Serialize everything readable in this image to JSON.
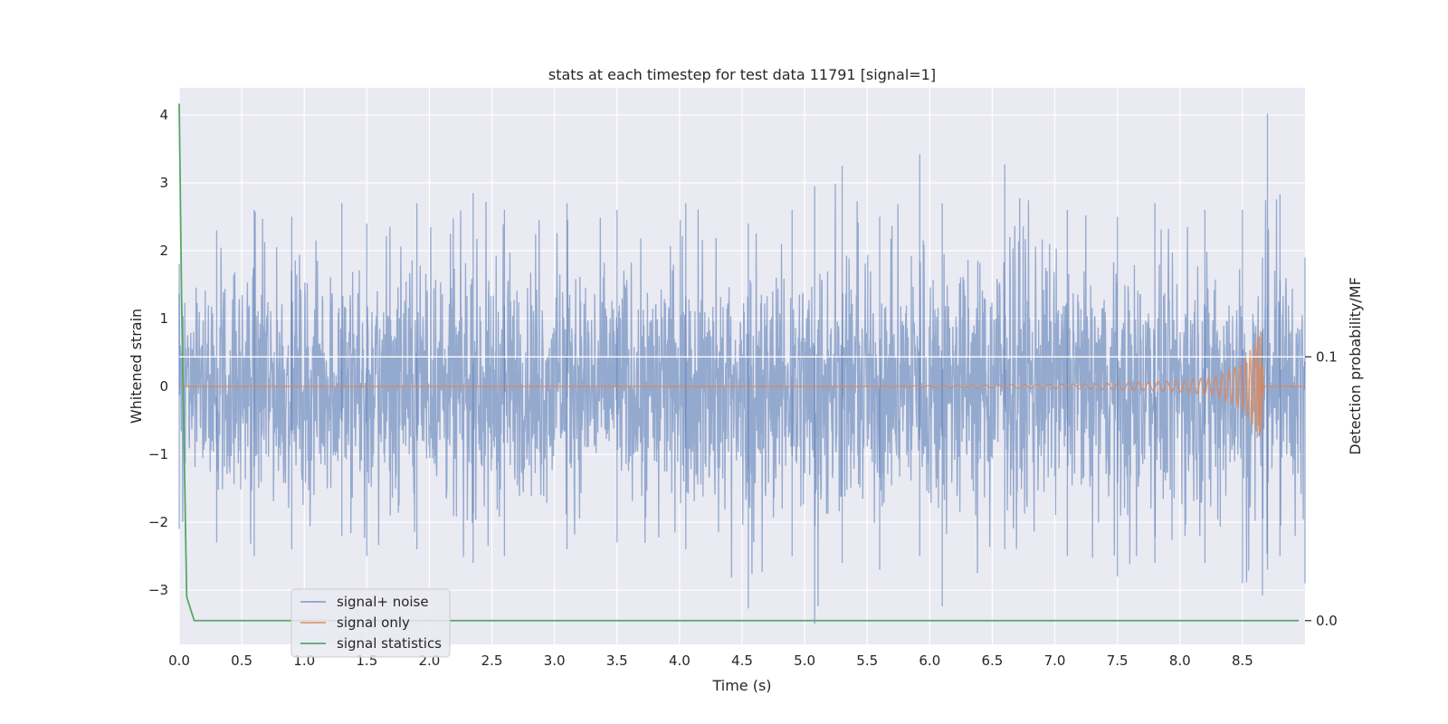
{
  "chart_data": {
    "type": "line",
    "title": "stats at each timestep for test data 11791 [signal=1]",
    "xlabel": "Time (s)",
    "ylabel": "Whitened strain",
    "ylabel_right": "Detection probability/MF",
    "xlim": [
      0,
      9.0
    ],
    "ylim": [
      -3.8,
      4.4
    ],
    "ylim_right": [
      -0.009,
      0.202
    ],
    "x_ticks": [
      0.0,
      0.5,
      1.0,
      1.5,
      2.0,
      2.5,
      3.0,
      3.5,
      4.0,
      4.5,
      5.0,
      5.5,
      6.0,
      6.5,
      7.0,
      7.5,
      8.0,
      8.5
    ],
    "x_tick_labels": [
      "0.0",
      "0.5",
      "1.0",
      "1.5",
      "2.0",
      "2.5",
      "3.0",
      "3.5",
      "4.0",
      "4.5",
      "5.0",
      "5.5",
      "6.0",
      "6.5",
      "7.0",
      "7.5",
      "8.0",
      "8.5"
    ],
    "y_ticks": [
      -3,
      -2,
      -1,
      0,
      1,
      2,
      3,
      4
    ],
    "y_tick_labels": [
      "−3",
      "−2",
      "−1",
      "0",
      "1",
      "2",
      "3",
      "4"
    ],
    "y_right_ticks": [
      0.0,
      0.1
    ],
    "y_right_tick_labels": [
      "0.0",
      "0.1"
    ],
    "grid": true,
    "legend_position": "lower-left",
    "legend": [
      "signal+ noise",
      "signal only",
      "signal statistics"
    ],
    "series": [
      {
        "name": "signal+ noise",
        "axis": "left",
        "color": "#4c72b0",
        "description": "whitened strain noise, roughly within ±2.5 with spikes",
        "x": [
          0.0,
          0.3,
          0.6,
          0.9,
          1.3,
          1.5,
          1.9,
          2.35,
          2.6,
          3.1,
          3.5,
          4.05,
          4.55,
          4.9,
          5.08,
          5.3,
          5.6,
          5.92,
          6.1,
          6.6,
          7.1,
          7.5,
          7.8,
          8.2,
          8.5,
          8.66,
          8.7,
          8.8,
          9.0
        ],
        "y_max": [
          1.8,
          2.3,
          2.6,
          2.5,
          2.7,
          2.4,
          2.7,
          2.85,
          2.6,
          2.7,
          2.6,
          2.7,
          2.4,
          2.6,
          2.95,
          3.25,
          2.5,
          3.42,
          2.7,
          3.27,
          2.6,
          2.5,
          2.7,
          2.6,
          2.6,
          1.9,
          4.02,
          2.83,
          1.9
        ],
        "y_min": [
          -2.1,
          -2.3,
          -2.5,
          -2.4,
          -2.2,
          -2.5,
          -2.4,
          -2.6,
          -2.5,
          -2.4,
          -2.3,
          -2.4,
          -3.27,
          -2.5,
          -3.5,
          -2.6,
          -2.7,
          -2.5,
          -3.24,
          -2.4,
          -2.5,
          -2.8,
          -2.6,
          -2.6,
          -2.9,
          -3.08,
          -2.7,
          -2.5,
          -2.9
        ]
      },
      {
        "name": "signal only",
        "axis": "left",
        "color": "#dd8452",
        "description": "chirp signal, flat near 0 until ~5.5 s, growing to peak amplitude ~0.9 at ~8.65 s",
        "x": [
          0.0,
          5.5,
          6.5,
          7.0,
          7.5,
          8.0,
          8.3,
          8.5,
          8.6,
          8.65,
          8.67,
          9.0
        ],
        "amplitude": [
          0.0,
          0.0,
          0.02,
          0.03,
          0.05,
          0.08,
          0.15,
          0.35,
          0.65,
          0.9,
          0.0,
          0.0
        ]
      },
      {
        "name": "signal statistics",
        "axis": "right",
        "color": "#55a868",
        "x": [
          0.0,
          0.02,
          0.06,
          0.12,
          8.95
        ],
        "y": [
          0.196,
          0.12,
          0.009,
          0.0,
          0.0
        ]
      }
    ]
  },
  "colors": {
    "plot_background": "#eaeaf2",
    "grid": "#ffffff",
    "signal_noise": "#4c72b0",
    "signal_only": "#dd8452",
    "signal_statistics": "#55a868",
    "text": "#262626"
  }
}
